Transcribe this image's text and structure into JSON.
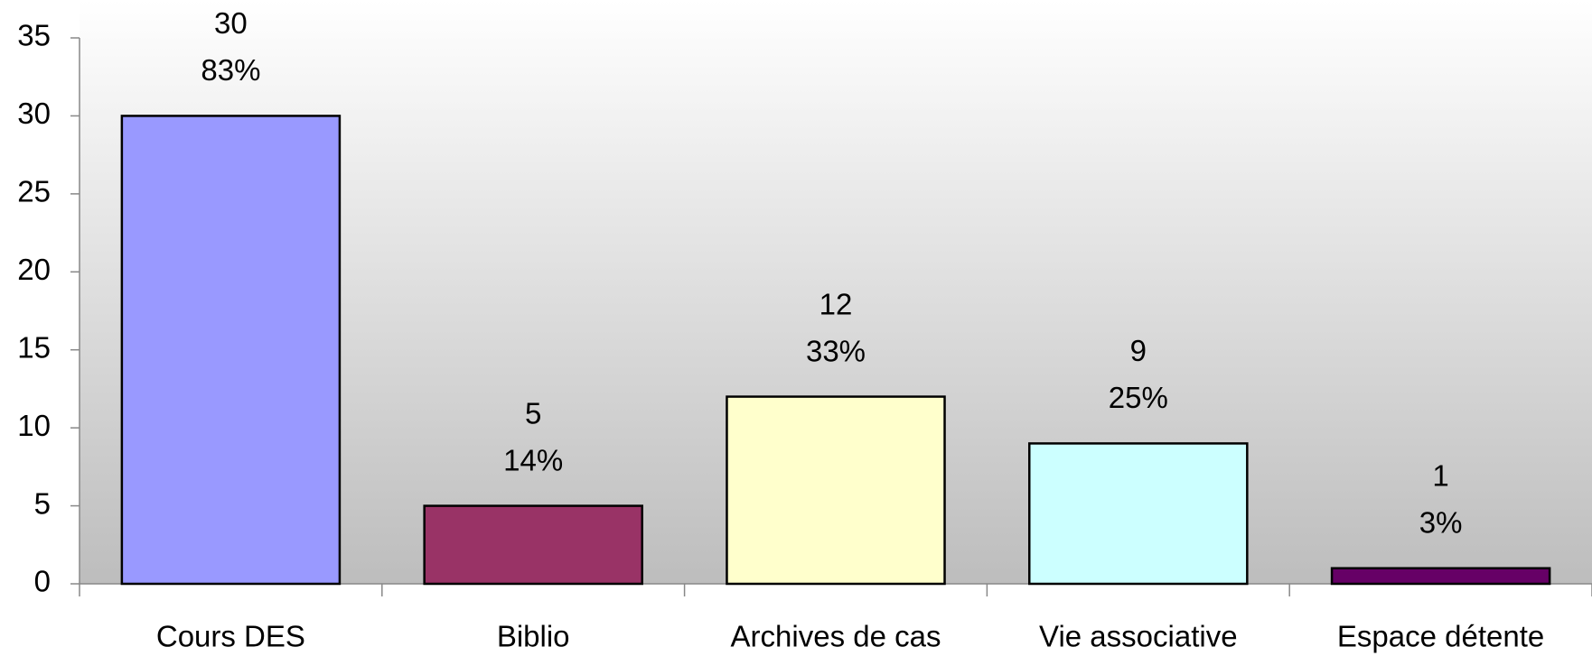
{
  "chart_data": {
    "type": "bar",
    "categories": [
      "Cours DES",
      "Biblio",
      "Archives de cas",
      "Vie associative",
      "Espace détente"
    ],
    "values": [
      30,
      5,
      12,
      9,
      1
    ],
    "colors": [
      "#9999ff",
      "#993366",
      "#ffffcc",
      "#ccffff",
      "#660066"
    ],
    "percent_values": [
      83,
      14,
      33,
      25,
      3
    ],
    "percent_labels": [
      "83%",
      "14%",
      "33%",
      "25%",
      "3%"
    ],
    "ylim": [
      0,
      35
    ],
    "yticks": [
      0,
      5,
      10,
      15,
      20,
      25,
      30,
      35
    ]
  }
}
